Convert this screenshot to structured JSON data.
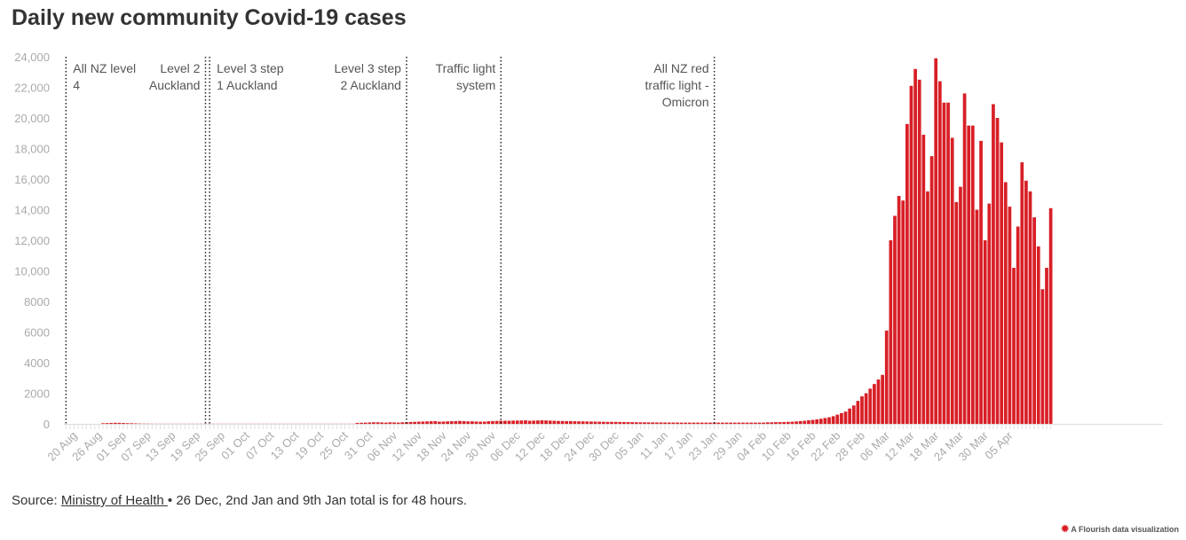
{
  "title": "Daily new community Covid-19 cases",
  "footer": {
    "prefix": "Source: ",
    "link_text": "Ministry of Health ",
    "suffix": "• 26 Dec, 2nd Jan and 9th Jan total is for 48 hours."
  },
  "credit": "A Flourish data visualization",
  "colors": {
    "bar": "#d81f26",
    "grid_tick": "#e0e0e0",
    "text": "#333333",
    "axis_text": "#aaaaaa"
  },
  "chart_data": {
    "type": "bar",
    "title": "Daily new community Covid-19 cases",
    "ylim": [
      0,
      24000
    ],
    "y_ticks": [
      0,
      2000,
      4000,
      6000,
      8000,
      10000,
      12000,
      14000,
      16000,
      18000,
      20000,
      22000,
      24000
    ],
    "y_tick_labels": [
      "0",
      "2000",
      "4000",
      "6000",
      "8000",
      "10,000",
      "12,000",
      "14,000",
      "16,000",
      "18,000",
      "20,000",
      "22,000",
      "24,000"
    ],
    "x_tick_labels": [
      "20 Aug",
      "26 Aug",
      "01 Sep",
      "07 Sep",
      "13 Sep",
      "19 Sep",
      "25 Sep",
      "01 Oct",
      "07 Oct",
      "13 Oct",
      "19 Oct",
      "25 Oct",
      "31 Oct",
      "06 Nov",
      "12 Nov",
      "18 Nov",
      "24 Nov",
      "30 Nov",
      "06 Dec",
      "12 Dec",
      "18 Dec",
      "24 Dec",
      "30 Dec",
      "05 Jan",
      "11 Jan",
      "17 Jan",
      "23 Jan",
      "29 Jan",
      "04 Feb",
      "10 Feb",
      "16 Feb",
      "22 Feb",
      "28 Feb",
      "06 Mar",
      "12 Mar",
      "18 Mar",
      "24 Mar",
      "30 Mar",
      "05 Apr"
    ],
    "x_tick_interval_days": 6,
    "first_date": "2021-08-18",
    "last_date": "2022-04-05",
    "values": [
      0,
      0,
      0,
      0,
      0,
      0,
      0,
      0,
      0,
      40,
      50,
      60,
      70,
      65,
      55,
      45,
      40,
      30,
      20,
      15,
      15,
      10,
      10,
      10,
      10,
      10,
      10,
      10,
      10,
      10,
      10,
      10,
      10,
      10,
      10,
      10,
      10,
      10,
      10,
      10,
      10,
      10,
      10,
      10,
      10,
      10,
      10,
      10,
      10,
      10,
      10,
      10,
      10,
      10,
      10,
      10,
      10,
      10,
      10,
      10,
      10,
      10,
      10,
      10,
      10,
      10,
      10,
      10,
      10,
      10,
      10,
      60,
      70,
      80,
      90,
      100,
      100,
      90,
      80,
      100,
      90,
      80,
      100,
      110,
      120,
      130,
      140,
      150,
      160,
      170,
      180,
      140,
      150,
      160,
      170,
      180,
      190,
      175,
      160,
      165,
      150,
      140,
      145,
      170,
      180,
      190,
      200,
      200,
      200,
      210,
      215,
      220,
      225,
      200,
      210,
      220,
      230,
      220,
      210,
      200,
      190,
      185,
      180,
      175,
      170,
      165,
      160,
      155,
      150,
      145,
      140,
      135,
      130,
      130,
      130,
      125,
      120,
      115,
      110,
      105,
      100,
      100,
      95,
      95,
      90,
      90,
      90,
      85,
      85,
      85,
      80,
      80,
      80,
      80,
      80,
      80,
      80,
      80,
      80,
      80,
      80,
      80,
      80,
      80,
      80,
      80,
      80,
      80,
      80,
      80,
      80,
      100,
      100,
      110,
      110,
      120,
      130,
      140,
      160,
      180,
      200,
      230,
      260,
      290,
      330,
      380,
      430,
      500,
      600,
      700,
      800,
      1000,
      1200,
      1500,
      1800,
      2000,
      2300,
      2600,
      2900,
      3200,
      6100,
      12000,
      13600,
      14900,
      14600,
      19600,
      22100,
      23200,
      22500,
      18900,
      15200,
      17500,
      23900,
      22400,
      21000,
      21000,
      18700,
      14500,
      15500,
      21600,
      19500,
      19500,
      14000,
      18500,
      12000,
      14400,
      20900,
      20000,
      18400,
      15800,
      14200,
      10200,
      12900,
      17100,
      15900,
      15200,
      13500,
      11600,
      8800,
      10200,
      14100
    ],
    "events": [
      {
        "date": "2021-08-18",
        "label": "All NZ level 4",
        "lines": [
          "All NZ level",
          "4"
        ],
        "align": "start"
      },
      {
        "date": "2021-09-21",
        "label": "Level 2 Auckland",
        "lines": [
          "Level 2",
          "Auckland"
        ],
        "align": "end"
      },
      {
        "date": "2021-09-22",
        "label": "Level 3 step 1 Auckland",
        "lines": [
          "Level 3 step",
          "1 Auckland"
        ],
        "align": "start"
      },
      {
        "date": "2021-11-09",
        "label": "Level 3 step 2 Auckland",
        "lines": [
          "Level 3 step",
          "2 Auckland"
        ],
        "align": "end"
      },
      {
        "date": "2021-12-02",
        "label": "Traffic light system",
        "lines": [
          "Traffic light",
          "system"
        ],
        "align": "end"
      },
      {
        "date": "2022-01-23",
        "label": "All NZ red traffic light - Omicron",
        "lines": [
          "All NZ red",
          "traffic light -",
          "Omicron"
        ],
        "align": "end"
      }
    ]
  }
}
